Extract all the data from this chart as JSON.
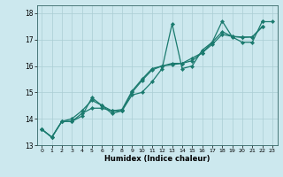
{
  "title": "",
  "xlabel": "Humidex (Indice chaleur)",
  "ylabel": "",
  "bg_color": "#cce8ee",
  "line_color": "#1a7a6e",
  "grid_color": "#aacdd4",
  "xlim": [
    -0.5,
    23.5
  ],
  "ylim": [
    13.0,
    18.3
  ],
  "yticks": [
    13,
    14,
    15,
    16,
    17,
    18
  ],
  "xticks": [
    0,
    1,
    2,
    3,
    4,
    5,
    6,
    7,
    8,
    9,
    10,
    11,
    12,
    13,
    14,
    15,
    16,
    17,
    18,
    19,
    20,
    21,
    22,
    23
  ],
  "s1_y": [
    13.6,
    13.3,
    13.9,
    13.9,
    14.1,
    14.8,
    14.5,
    14.2,
    14.3,
    14.9,
    15.0,
    15.4,
    15.9,
    17.6,
    15.9,
    16.0,
    16.6,
    16.9,
    17.7,
    17.1,
    16.9,
    16.9,
    17.7,
    null
  ],
  "s2_y": [
    13.6,
    13.3,
    13.9,
    13.9,
    14.2,
    14.4,
    14.4,
    14.3,
    14.3,
    15.0,
    15.45,
    15.85,
    16.0,
    16.05,
    16.1,
    16.2,
    16.5,
    16.82,
    17.2,
    17.12,
    17.08,
    17.1,
    17.48,
    null
  ],
  "s3_y": [
    13.6,
    13.3,
    13.9,
    14.0,
    14.3,
    14.7,
    14.5,
    14.3,
    14.35,
    15.05,
    15.5,
    15.9,
    16.0,
    16.1,
    16.1,
    16.3,
    16.5,
    16.9,
    17.3,
    17.12,
    17.1,
    17.1,
    17.5,
    null
  ],
  "marker": "D",
  "markersize": 2.2,
  "linewidth": 0.9
}
